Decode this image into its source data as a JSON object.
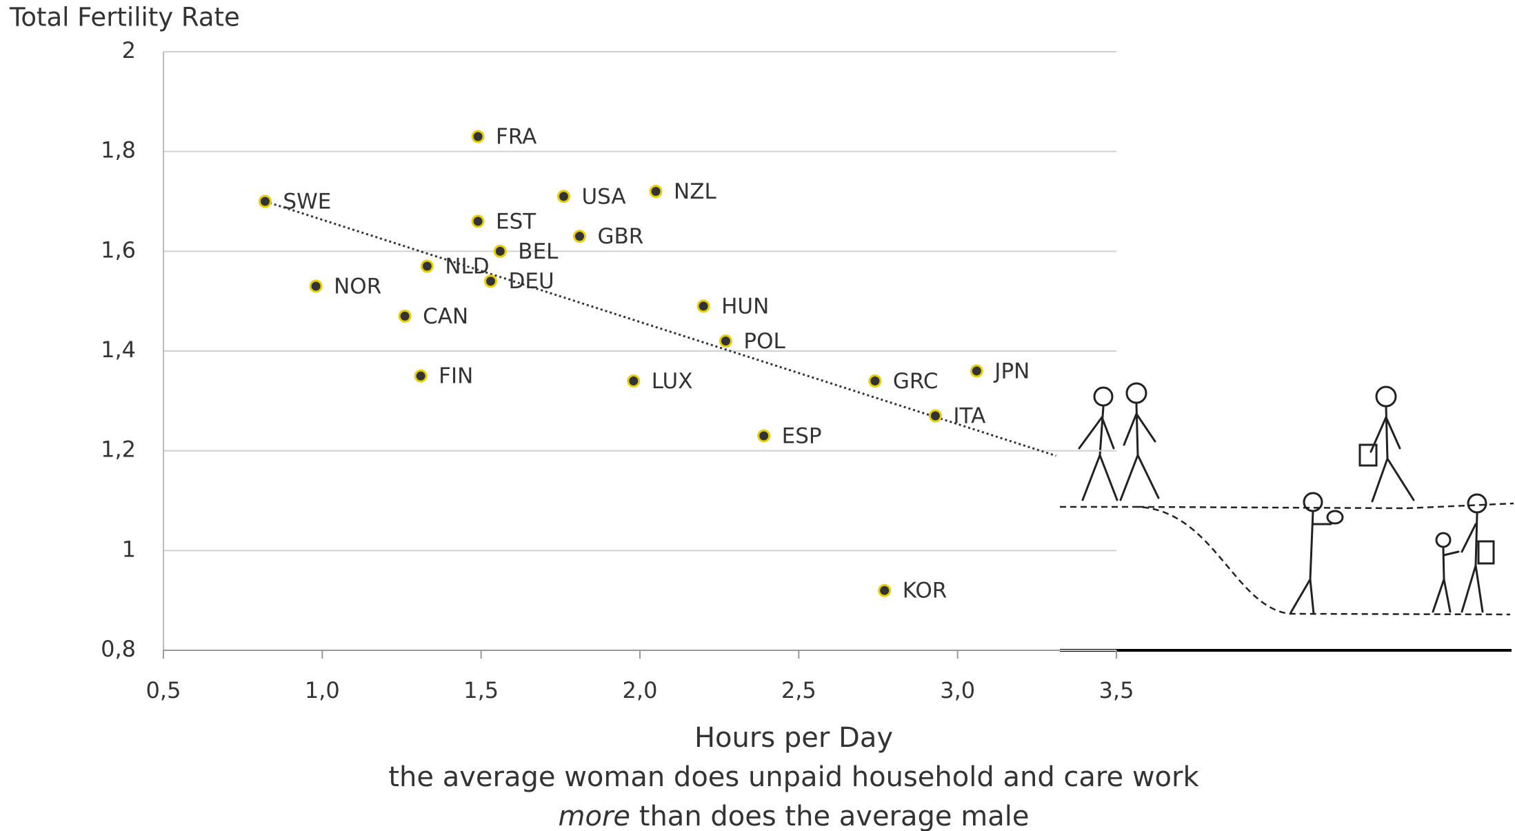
{
  "chart_data": {
    "type": "scatter",
    "title": "Total Fertility Rate",
    "xlabel": "Hours per Day",
    "caption_line1": "the average woman does unpaid household and care work",
    "caption_emphasis": "more",
    "caption_rest": "than does the average male",
    "labels": [
      "SWE",
      "FRA",
      "USA",
      "NZL",
      "EST",
      "GBR",
      "BEL",
      "NLD",
      "DEU",
      "NOR",
      "CAN",
      "HUN",
      "POL",
      "FIN",
      "LUX",
      "GRC",
      "JPN",
      "ITA",
      "ESP",
      "KOR"
    ],
    "x": [
      0.82,
      1.49,
      1.76,
      2.05,
      1.49,
      1.81,
      1.56,
      1.33,
      1.53,
      0.98,
      1.26,
      2.2,
      2.27,
      1.31,
      1.98,
      2.74,
      3.06,
      2.93,
      2.39,
      2.77
    ],
    "y": [
      1.7,
      1.83,
      1.71,
      1.72,
      1.66,
      1.63,
      1.6,
      1.57,
      1.54,
      1.53,
      1.47,
      1.49,
      1.42,
      1.35,
      1.34,
      1.34,
      1.36,
      1.27,
      1.23,
      0.92
    ],
    "color": "#333333",
    "edge_color": "#e8d000",
    "trendline": {
      "x": [
        0.82,
        3.31
      ],
      "y": [
        1.7,
        1.19
      ]
    },
    "xlim": [
      0.5,
      3.5
    ],
    "xticks": [
      {
        "value": 0.5,
        "label": "0,5"
      },
      {
        "value": 1.0,
        "label": "1,0"
      },
      {
        "value": 1.5,
        "label": "1,5"
      },
      {
        "value": 2.0,
        "label": "2,0"
      },
      {
        "value": 2.5,
        "label": "2,5"
      },
      {
        "value": 3.0,
        "label": "3,0"
      },
      {
        "value": 3.5,
        "label": "3,5"
      }
    ],
    "ylim": [
      0.8,
      2
    ],
    "yticks": [
      {
        "value": 0.8,
        "label": "0,8"
      },
      1,
      {
        "value": 1.2,
        "label": "1,2"
      },
      {
        "value": 1.4,
        "label": "1,4"
      },
      {
        "value": 1.6,
        "label": "1,6"
      },
      {
        "value": 1.8,
        "label": "1,8"
      },
      2
    ],
    "grid": true
  }
}
